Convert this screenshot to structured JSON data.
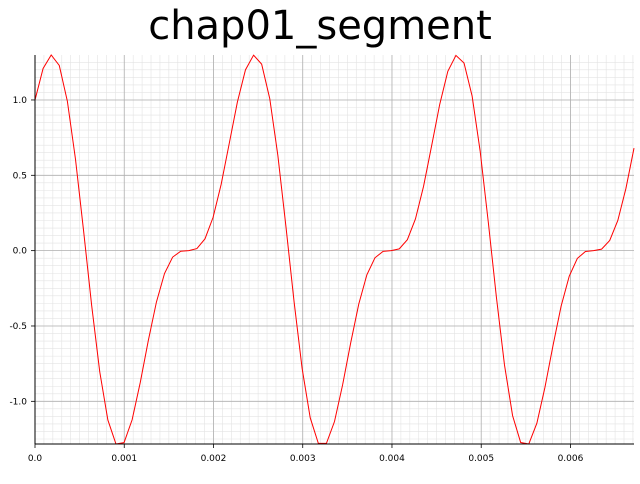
{
  "chart_data": {
    "type": "line",
    "title": "chap01_segment",
    "x": [
      0,
      9.07e-05,
      0.0001814,
      0.0002721,
      0.0003628,
      0.0004535,
      0.0005442,
      0.0006349,
      0.0007256,
      0.0008163,
      0.000907,
      0.0009977,
      0.0010884,
      0.0011791,
      0.0012698,
      0.0013605,
      0.0014512,
      0.001542,
      0.0016327,
      0.0017234,
      0.0018141,
      0.0019048,
      0.0019955,
      0.0020862,
      0.0021769,
      0.0022676,
      0.0023583,
      0.002449,
      0.0025397,
      0.0026304,
      0.0027211,
      0.0028118,
      0.0029025,
      0.0029932,
      0.0030839,
      0.0031746,
      0.0032653,
      0.003356,
      0.0034467,
      0.0035374,
      0.0036281,
      0.0037188,
      0.0038095,
      0.0039002,
      0.0039909,
      0.0040816,
      0.0041723,
      0.004263,
      0.0043537,
      0.0044444,
      0.0045351,
      0.0046259,
      0.0047166,
      0.0048073,
      0.004898,
      0.0049887,
      0.0050794,
      0.0051701,
      0.0052608,
      0.0053515,
      0.0054422,
      0.0055329,
      0.0056236,
      0.0057143,
      0.005805,
      0.0058957,
      0.0059864,
      0.0060771,
      0.0061678,
      0.0062585,
      0.0063492,
      0.0064399,
      0.0065306,
      0.0066213,
      0.006712
    ],
    "values": [
      1.0,
      1.2091,
      1.2984,
      1.229,
      0.9911,
      0.6079,
      0.1323,
      -0.3638,
      -0.804,
      -1.1236,
      -1.2829,
      -1.2743,
      -1.1222,
      -0.8759,
      -0.5963,
      -0.3412,
      -0.1517,
      -0.0432,
      -0.0039,
      0.0001,
      0.0136,
      0.0785,
      0.2207,
      0.4408,
      0.7123,
      0.9856,
      1.1999,
      1.2973,
      1.2376,
      1.009,
      0.6329,
      0.1607,
      -0.3363,
      -0.7816,
      -1.1095,
      -1.2784,
      -1.279,
      -1.134,
      -0.8914,
      -0.6121,
      -0.3543,
      -0.1603,
      -0.0473,
      -0.0048,
      0.0,
      0.0118,
      0.0728,
      0.2103,
      0.4265,
      0.6962,
      0.971,
      1.1904,
      1.2957,
      1.2456,
      1.0263,
      0.6575,
      0.189,
      -0.3087,
      -0.7588,
      -1.0948,
      -1.2734,
      -1.2832,
      -1.1454,
      -0.9068,
      -0.6279,
      -0.3675,
      -0.1694,
      -0.0516,
      -0.0058,
      0.0,
      0.0101,
      0.0675,
      0.2003,
      0.4124,
      0.6802
    ],
    "color": "#ff0000",
    "xlim": [
      0,
      0.006712
    ],
    "ylim": [
      -1.2832,
      1.2984
    ],
    "xticks": [
      {
        "value": 0,
        "label": "0.0"
      },
      0.001,
      0.002,
      0.003,
      0.004,
      0.005,
      0.006
    ],
    "yticks": [
      {
        "value": -1,
        "label": "-1.0"
      },
      -0.5,
      {
        "value": 0,
        "label": "0.0"
      },
      0.5,
      {
        "value": 1,
        "label": "1.0"
      }
    ],
    "grid": true,
    "minor_grid": true
  }
}
